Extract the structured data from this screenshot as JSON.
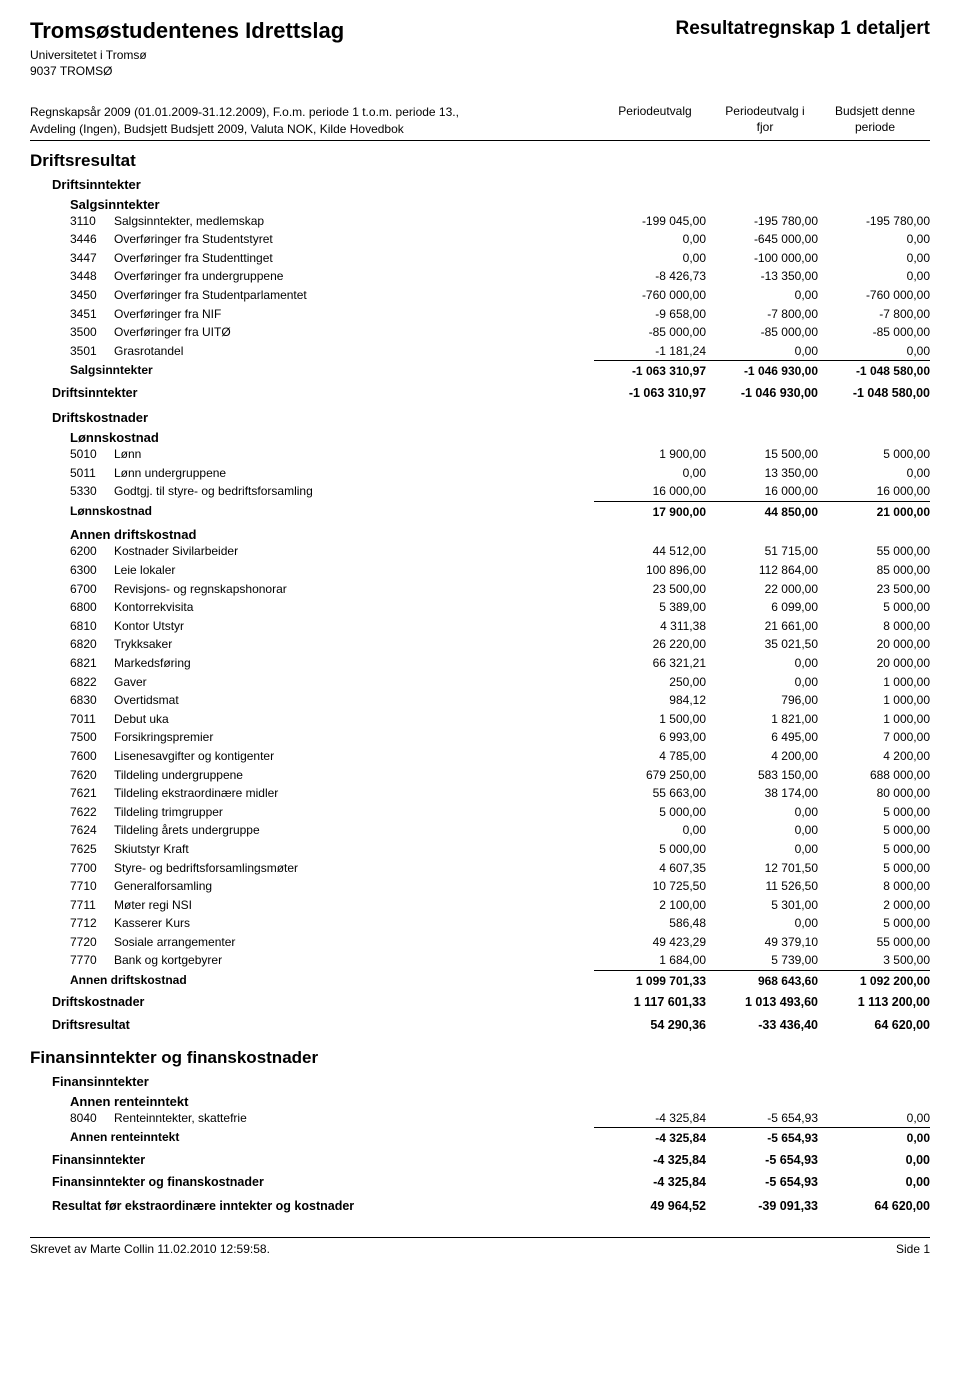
{
  "header": {
    "org_name": "Tromsøstudentenes Idrettslag",
    "doc_title": "Resultatregnskap 1 detaljert",
    "org_sub": "Universitetet i Tromsø",
    "org_addr": "9037 TROMSØ"
  },
  "meta": {
    "line1": "Regnskapsår 2009 (01.01.2009-31.12.2009), F.o.m. periode 1 t.o.m. periode 13.,",
    "line2": "Avdeling (Ingen), Budsjett Budsjett 2009, Valuta NOK, Kilde Hovedbok",
    "col1a": "Periodeutvalg",
    "col2a": "Periodeutvalg i",
    "col2b": "fjor",
    "col3a": "Budsjett denne",
    "col3b": "periode"
  },
  "s1": {
    "title": "Driftsresultat",
    "inntekter_h": "Driftsinntekter",
    "salg_h": "Salgsinntekter",
    "salg_rows": [
      {
        "code": "3110",
        "label": "Salgsinntekter, medlemskap",
        "c1": "-199 045,00",
        "c2": "-195 780,00",
        "c3": "-195 780,00"
      },
      {
        "code": "3446",
        "label": "Overføringer fra Studentstyret",
        "c1": "0,00",
        "c2": "-645 000,00",
        "c3": "0,00"
      },
      {
        "code": "3447",
        "label": "Overføringer fra Studenttinget",
        "c1": "0,00",
        "c2": "-100 000,00",
        "c3": "0,00"
      },
      {
        "code": "3448",
        "label": "Overføringer fra undergruppene",
        "c1": "-8 426,73",
        "c2": "-13 350,00",
        "c3": "0,00"
      },
      {
        "code": "3450",
        "label": "Overføringer fra Studentparlamentet",
        "c1": "-760 000,00",
        "c2": "0,00",
        "c3": "-760 000,00"
      },
      {
        "code": "3451",
        "label": "Overføringer fra NIF",
        "c1": "-9 658,00",
        "c2": "-7 800,00",
        "c3": "-7 800,00"
      },
      {
        "code": "3500",
        "label": "Overføringer fra UITØ",
        "c1": "-85 000,00",
        "c2": "-85 000,00",
        "c3": "-85 000,00"
      },
      {
        "code": "3501",
        "label": "Grasrotandel",
        "c1": "-1 181,24",
        "c2": "0,00",
        "c3": "0,00"
      }
    ],
    "salg_sub": {
      "label": "Salgsinntekter",
      "c1": "-1 063 310,97",
      "c2": "-1 046 930,00",
      "c3": "-1 048 580,00"
    },
    "inntekter_total": {
      "label": "Driftsinntekter",
      "c1": "-1 063 310,97",
      "c2": "-1 046 930,00",
      "c3": "-1 048 580,00"
    },
    "kost_h": "Driftskostnader",
    "lonn_h": "Lønnskostnad",
    "lonn_rows": [
      {
        "code": "5010",
        "label": "Lønn",
        "c1": "1 900,00",
        "c2": "15 500,00",
        "c3": "5 000,00"
      },
      {
        "code": "5011",
        "label": "Lønn undergruppene",
        "c1": "0,00",
        "c2": "13 350,00",
        "c3": "0,00"
      },
      {
        "code": "5330",
        "label": "Godtgj. til styre- og bedriftsforsamling",
        "c1": "16 000,00",
        "c2": "16 000,00",
        "c3": "16 000,00"
      }
    ],
    "lonn_sub": {
      "label": "Lønnskostnad",
      "c1": "17 900,00",
      "c2": "44 850,00",
      "c3": "21 000,00"
    },
    "annen_h": "Annen driftskostnad",
    "annen_rows": [
      {
        "code": "6200",
        "label": "Kostnader Sivilarbeider",
        "c1": "44 512,00",
        "c2": "51 715,00",
        "c3": "55 000,00"
      },
      {
        "code": "6300",
        "label": "Leie lokaler",
        "c1": "100 896,00",
        "c2": "112 864,00",
        "c3": "85 000,00"
      },
      {
        "code": "6700",
        "label": "Revisjons- og regnskapshonorar",
        "c1": "23 500,00",
        "c2": "22 000,00",
        "c3": "23 500,00"
      },
      {
        "code": "6800",
        "label": "Kontorrekvisita",
        "c1": "5 389,00",
        "c2": "6 099,00",
        "c3": "5 000,00"
      },
      {
        "code": "6810",
        "label": "Kontor Utstyr",
        "c1": "4 311,38",
        "c2": "21 661,00",
        "c3": "8 000,00"
      },
      {
        "code": "6820",
        "label": "Trykksaker",
        "c1": "26 220,00",
        "c2": "35 021,50",
        "c3": "20 000,00"
      },
      {
        "code": "6821",
        "label": "Markedsføring",
        "c1": "66 321,21",
        "c2": "0,00",
        "c3": "20 000,00"
      },
      {
        "code": "6822",
        "label": "Gaver",
        "c1": "250,00",
        "c2": "0,00",
        "c3": "1 000,00"
      },
      {
        "code": "6830",
        "label": "Overtidsmat",
        "c1": "984,12",
        "c2": "796,00",
        "c3": "1 000,00"
      },
      {
        "code": "7011",
        "label": "Debut uka",
        "c1": "1 500,00",
        "c2": "1 821,00",
        "c3": "1 000,00"
      },
      {
        "code": "7500",
        "label": "Forsikringspremier",
        "c1": "6 993,00",
        "c2": "6 495,00",
        "c3": "7 000,00"
      },
      {
        "code": "7600",
        "label": "Lisenesavgifter og kontigenter",
        "c1": "4 785,00",
        "c2": "4 200,00",
        "c3": "4 200,00"
      },
      {
        "code": "7620",
        "label": "Tildeling undergruppene",
        "c1": "679 250,00",
        "c2": "583 150,00",
        "c3": "688 000,00"
      },
      {
        "code": "7621",
        "label": "Tildeling ekstraordinære midler",
        "c1": "55 663,00",
        "c2": "38 174,00",
        "c3": "80 000,00"
      },
      {
        "code": "7622",
        "label": "Tildeling trimgrupper",
        "c1": "5 000,00",
        "c2": "0,00",
        "c3": "5 000,00"
      },
      {
        "code": "7624",
        "label": "Tildeling årets undergruppe",
        "c1": "0,00",
        "c2": "0,00",
        "c3": "5 000,00"
      },
      {
        "code": "7625",
        "label": "Skiutstyr Kraft",
        "c1": "5 000,00",
        "c2": "0,00",
        "c3": "5 000,00"
      },
      {
        "code": "7700",
        "label": "Styre- og bedriftsforsamlingsmøter",
        "c1": "4 607,35",
        "c2": "12 701,50",
        "c3": "5 000,00"
      },
      {
        "code": "7710",
        "label": "Generalforsamling",
        "c1": "10 725,50",
        "c2": "11 526,50",
        "c3": "8 000,00"
      },
      {
        "code": "7711",
        "label": "Møter regi NSI",
        "c1": "2 100,00",
        "c2": "5 301,00",
        "c3": "2 000,00"
      },
      {
        "code": "7712",
        "label": "Kasserer Kurs",
        "c1": "586,48",
        "c2": "0,00",
        "c3": "5 000,00"
      },
      {
        "code": "7720",
        "label": "Sosiale arrangementer",
        "c1": "49 423,29",
        "c2": "49 379,10",
        "c3": "55 000,00"
      },
      {
        "code": "7770",
        "label": "Bank og kortgebyrer",
        "c1": "1 684,00",
        "c2": "5 739,00",
        "c3": "3 500,00"
      }
    ],
    "annen_sub": {
      "label": "Annen driftskostnad",
      "c1": "1 099 701,33",
      "c2": "968 643,60",
      "c3": "1 092 200,00"
    },
    "kost_total": {
      "label": "Driftskostnader",
      "c1": "1 117 601,33",
      "c2": "1 013 493,60",
      "c3": "1 113 200,00"
    },
    "drift_result": {
      "label": "Driftsresultat",
      "c1": "54 290,36",
      "c2": "-33 436,40",
      "c3": "64 620,00"
    }
  },
  "s2": {
    "title": "Finansinntekter og finanskostnader",
    "fin_h": "Finansinntekter",
    "rente_h": "Annen renteinntekt",
    "rente_rows": [
      {
        "code": "8040",
        "label": "Renteinntekter, skattefrie",
        "c1": "-4 325,84",
        "c2": "-5 654,93",
        "c3": "0,00"
      }
    ],
    "rente_sub": {
      "label": "Annen renteinntekt",
      "c1": "-4 325,84",
      "c2": "-5 654,93",
      "c3": "0,00"
    },
    "fin_total": {
      "label": "Finansinntekter",
      "c1": "-4 325,84",
      "c2": "-5 654,93",
      "c3": "0,00"
    },
    "fin_result": {
      "label": "Finansinntekter og finanskostnader",
      "c1": "-4 325,84",
      "c2": "-5 654,93",
      "c3": "0,00"
    },
    "final": {
      "label": "Resultat før ekstraordinære inntekter og kostnader",
      "c1": "49 964,52",
      "c2": "-39 091,33",
      "c3": "64 620,00"
    }
  },
  "footer": {
    "left": "Skrevet av Marte Collin 11.02.2010 12:59:58.",
    "right": "Side 1"
  }
}
